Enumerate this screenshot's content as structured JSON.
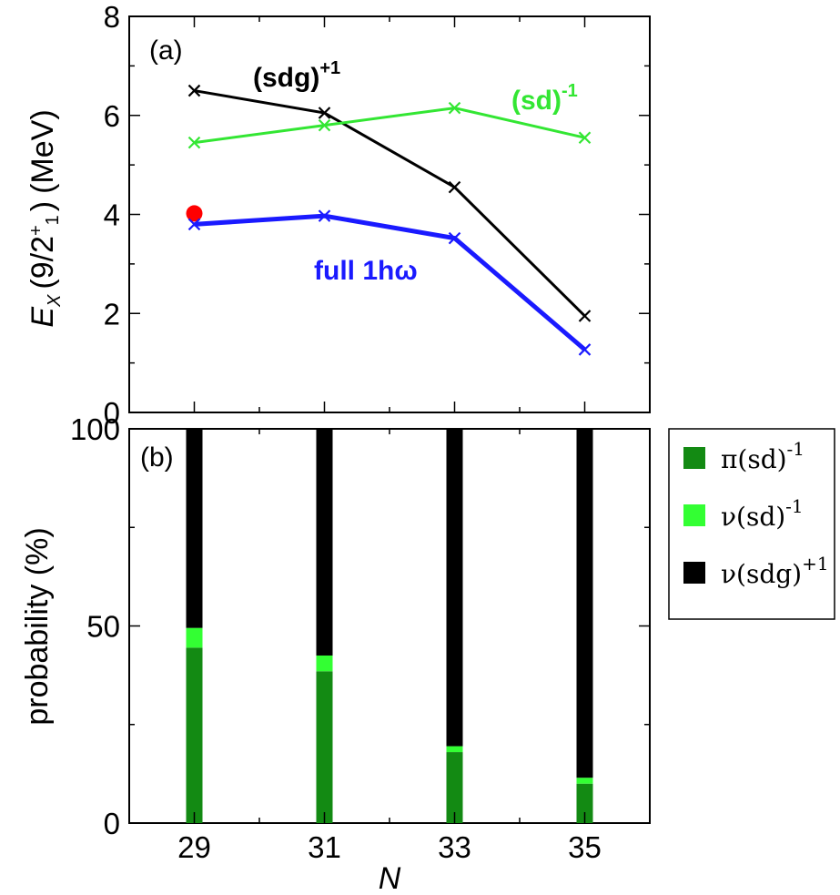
{
  "chart_data": [
    {
      "panel": "(a)",
      "type": "line",
      "x": [
        29,
        31,
        33,
        35
      ],
      "xlim": [
        28,
        36
      ],
      "ylim": [
        0,
        8
      ],
      "yticks": [
        "0",
        "2",
        "4",
        "6",
        "8"
      ],
      "ylabel": {
        "main": "E",
        "sub": "X",
        "paren": "(9/2",
        "sup": "+",
        "sub2": "1",
        "close": ")",
        "unit": "(MeV)"
      },
      "series": [
        {
          "name": "(sdg)",
          "name_sup": "+1",
          "color": "#000000",
          "values": [
            6.5,
            6.05,
            4.55,
            1.95
          ]
        },
        {
          "name": "(sd)",
          "name_sup": "-1",
          "color": "#33e633",
          "values": [
            5.45,
            5.8,
            6.15,
            5.55
          ]
        },
        {
          "name": "full 1hω",
          "name_sup": "",
          "color": "#1a1aff",
          "values": [
            3.8,
            3.97,
            3.52,
            1.27
          ]
        }
      ],
      "experiment": {
        "x": 29,
        "y": 4.02,
        "color": "#ff0000"
      }
    },
    {
      "panel": "(b)",
      "type": "bar",
      "stacked": true,
      "categories": [
        "29",
        "31",
        "33",
        "35"
      ],
      "ylim": [
        0,
        100
      ],
      "yticks": [
        "0",
        "50",
        "100"
      ],
      "ylabel": "probability (%)",
      "xlabel": "N",
      "series": [
        {
          "name": "π(sd)",
          "name_sup": "-1",
          "color": "#138a13",
          "values": [
            44.5,
            38.5,
            18.0,
            10.0
          ]
        },
        {
          "name": "ν(sd)",
          "name_sup": "-1",
          "color": "#33ff33",
          "values": [
            5.0,
            4.0,
            1.5,
            1.5
          ]
        },
        {
          "name": "ν(sdg)",
          "name_sup": "+1",
          "color": "#000000",
          "values": [
            50.5,
            57.5,
            80.5,
            88.5
          ]
        }
      ]
    }
  ]
}
